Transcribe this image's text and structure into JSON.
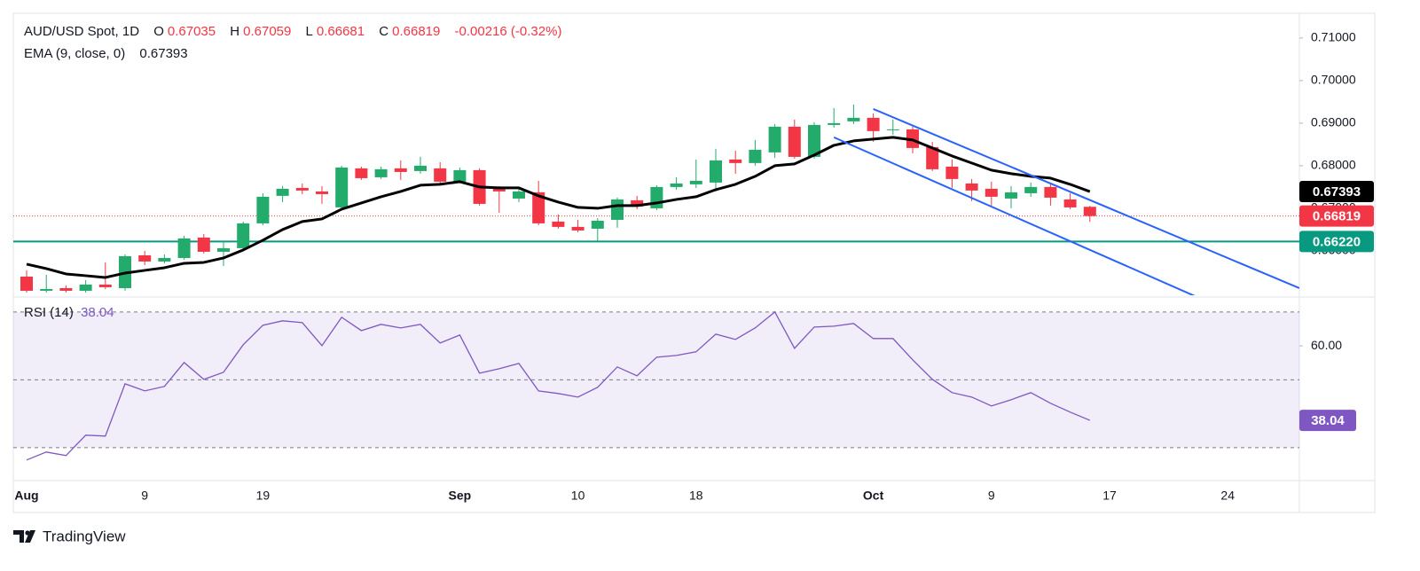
{
  "chart_data": [
    {
      "type": "candlestick",
      "title": "AUD/USD Spot, 1D",
      "ohlc_labels": [
        "O",
        "H",
        "L",
        "C"
      ],
      "change": "-0.00216 (-0.32%)",
      "categories": [
        "Aug",
        null,
        null,
        null,
        null,
        null,
        "9",
        null,
        null,
        null,
        null,
        null,
        "19",
        null,
        null,
        null,
        null,
        null,
        null,
        null,
        null,
        null,
        "Sep",
        null,
        null,
        null,
        null,
        null,
        "10",
        null,
        null,
        null,
        null,
        null,
        "18",
        null,
        null,
        null,
        null,
        null,
        null,
        null,
        null,
        "Oct",
        null,
        null,
        null,
        null,
        null,
        "9",
        null,
        null,
        null,
        null,
        null,
        "17",
        null,
        null,
        null,
        null,
        null,
        "24"
      ],
      "open": [
        0.65396,
        0.65063,
        0.65125,
        0.65063,
        0.65208,
        0.65125,
        0.65896,
        0.6575,
        0.65833,
        0.66313,
        0.65979,
        0.66063,
        0.66646,
        0.67292,
        0.67479,
        0.67396,
        0.67021,
        0.67938,
        0.67729,
        0.67938,
        0.67875,
        0.67938,
        0.67625,
        0.67896,
        0.67458,
        0.67229,
        0.67375,
        0.66688,
        0.66563,
        0.66521,
        0.66729,
        0.67188,
        0.67,
        0.675,
        0.67563,
        0.67604,
        0.68146,
        0.68063,
        0.68313,
        0.68917,
        0.68208,
        0.68958,
        0.69042,
        0.69125,
        0.68833,
        0.68854,
        0.68438,
        0.67979,
        0.67583,
        0.67458,
        0.67229,
        0.67354,
        0.675,
        0.67208,
        0.67035,
        null,
        null,
        null,
        null,
        null,
        null,
        null
      ],
      "high": [
        0.65542,
        0.65438,
        0.65188,
        0.65313,
        0.65729,
        0.65917,
        0.66,
        0.65917,
        0.66354,
        0.66396,
        0.66229,
        0.66688,
        0.67354,
        0.67521,
        0.67583,
        0.67521,
        0.68,
        0.67979,
        0.67979,
        0.68125,
        0.68208,
        0.68083,
        0.67958,
        0.67938,
        0.67521,
        0.67479,
        0.67646,
        0.66854,
        0.66729,
        0.66771,
        0.6725,
        0.67292,
        0.67542,
        0.67729,
        0.68146,
        0.68396,
        0.68354,
        0.68604,
        0.68979,
        0.69083,
        0.69021,
        0.69354,
        0.69437,
        0.69229,
        0.69083,
        0.68917,
        0.68563,
        0.68146,
        0.67688,
        0.67625,
        0.67521,
        0.67604,
        0.67563,
        0.67354,
        0.67059,
        null,
        null,
        null,
        null,
        null,
        null,
        null
      ],
      "low": [
        0.65021,
        0.65021,
        0.65021,
        0.65021,
        0.65104,
        0.65063,
        0.65667,
        0.65708,
        0.65792,
        0.65938,
        0.65646,
        0.66021,
        0.66604,
        0.67146,
        0.67333,
        0.67104,
        0.66979,
        0.67667,
        0.67688,
        0.67667,
        0.67813,
        0.67563,
        0.67583,
        0.67063,
        0.66896,
        0.67146,
        0.66604,
        0.66521,
        0.66438,
        0.66229,
        0.66542,
        0.66979,
        0.66958,
        0.67438,
        0.67479,
        0.67396,
        0.67813,
        0.68,
        0.68188,
        0.68167,
        0.68167,
        0.68896,
        0.68979,
        0.68563,
        0.68729,
        0.68292,
        0.67875,
        0.67479,
        0.67167,
        0.67063,
        0.67,
        0.67271,
        0.67063,
        0.66979,
        0.66681,
        null,
        null,
        null,
        null,
        null,
        null,
        null
      ],
      "close": [
        0.65063,
        0.65104,
        0.65063,
        0.65208,
        0.65146,
        0.65875,
        0.6575,
        0.65833,
        0.66292,
        0.65979,
        0.66063,
        0.66646,
        0.67271,
        0.67458,
        0.67417,
        0.67333,
        0.67958,
        0.67708,
        0.67917,
        0.67854,
        0.68,
        0.67625,
        0.67896,
        0.67104,
        0.67396,
        0.67396,
        0.66646,
        0.66563,
        0.66479,
        0.66708,
        0.67208,
        0.67042,
        0.675,
        0.67583,
        0.67646,
        0.68125,
        0.68063,
        0.68375,
        0.68917,
        0.68208,
        0.68958,
        0.69,
        0.69125,
        0.68813,
        0.68854,
        0.68417,
        0.67917,
        0.67688,
        0.67417,
        0.67271,
        0.67375,
        0.675,
        0.6725,
        0.67021,
        0.66819,
        null,
        null,
        null,
        null,
        null,
        null,
        null
      ],
      "up_color": "#22ab6b",
      "down_color": "#f23645",
      "ylim": [
        0.6502,
        0.7158
      ],
      "yticks": [
        {
          "value": 0.66,
          "label": "0.66000"
        },
        {
          "value": 0.67,
          "label": "0.67000"
        },
        {
          "value": 0.68,
          "label": "0.68000"
        },
        {
          "value": 0.69,
          "label": "0.69000"
        },
        {
          "value": 0.7,
          "label": "0.70000"
        },
        {
          "value": 0.71,
          "label": "0.71000"
        }
      ],
      "overlays": [
        {
          "name": "EMA (9, close, 0)",
          "color": "#000000",
          "values": [
            0.65688,
            0.65583,
            0.65458,
            0.65417,
            0.65375,
            0.65479,
            0.65542,
            0.65604,
            0.65708,
            0.65729,
            0.65833,
            0.66021,
            0.6625,
            0.665,
            0.66688,
            0.6675,
            0.66979,
            0.67125,
            0.67271,
            0.67396,
            0.67542,
            0.67563,
            0.67625,
            0.675,
            0.67479,
            0.67479,
            0.67292,
            0.67146,
            0.67021,
            0.67,
            0.67063,
            0.67063,
            0.67125,
            0.67208,
            0.67271,
            0.67438,
            0.67563,
            0.6775,
            0.68,
            0.68042,
            0.6825,
            0.68479,
            0.68583,
            0.68625,
            0.68667,
            0.68604,
            0.68417,
            0.68229,
            0.68063,
            0.67896,
            0.67813,
            0.6775,
            0.67708,
            0.67563,
            0.67393,
            null,
            null,
            null,
            null,
            null,
            null,
            null
          ]
        }
      ],
      "hlines": [
        {
          "value": 0.6622,
          "label": "0.66220",
          "color": "#089981"
        }
      ],
      "trendlines": [
        {
          "color": "#2962ff",
          "points": [
            {
              "x": 43,
              "price": 0.69333
            },
            {
              "x": 54,
              "price": 0.67194
            }
          ]
        },
        {
          "color": "#2962ff",
          "points": [
            {
              "x": 41,
              "price": 0.68667
            },
            {
              "x": 54,
              "price": 0.66023
            }
          ]
        }
      ]
    },
    {
      "type": "line",
      "series": [
        {
          "name": "RSI (14)",
          "color": "#7e57c2",
          "values": [
            26.34,
            28.69,
            27.65,
            33.66,
            33.4,
            48.82,
            46.73,
            48.04,
            55.1,
            50.13,
            52.22,
            60.33,
            66.08,
            67.39,
            66.86,
            60.07,
            68.43,
            64.51,
            66.34,
            65.29,
            66.34,
            60.85,
            63.2,
            51.96,
            53.27,
            54.84,
            46.73,
            45.95,
            44.9,
            47.78,
            53.79,
            51.18,
            56.67,
            57.19,
            58.24,
            63.46,
            61.9,
            65.29,
            70,
            59.28,
            65.56,
            65.82,
            66.6,
            62.16,
            62.16,
            55.88,
            50.13,
            46.21,
            44.9,
            42.29,
            44.12,
            46.21,
            43.07,
            40.46,
            38.04
          ]
        }
      ],
      "ylim": [
        20.8,
        73.1
      ],
      "yticks": [
        {
          "value": 60,
          "label": "60.00"
        }
      ],
      "levels": [
        30,
        50,
        70
      ],
      "band_color": "#7e57c2"
    }
  ],
  "brand": "TradingView"
}
